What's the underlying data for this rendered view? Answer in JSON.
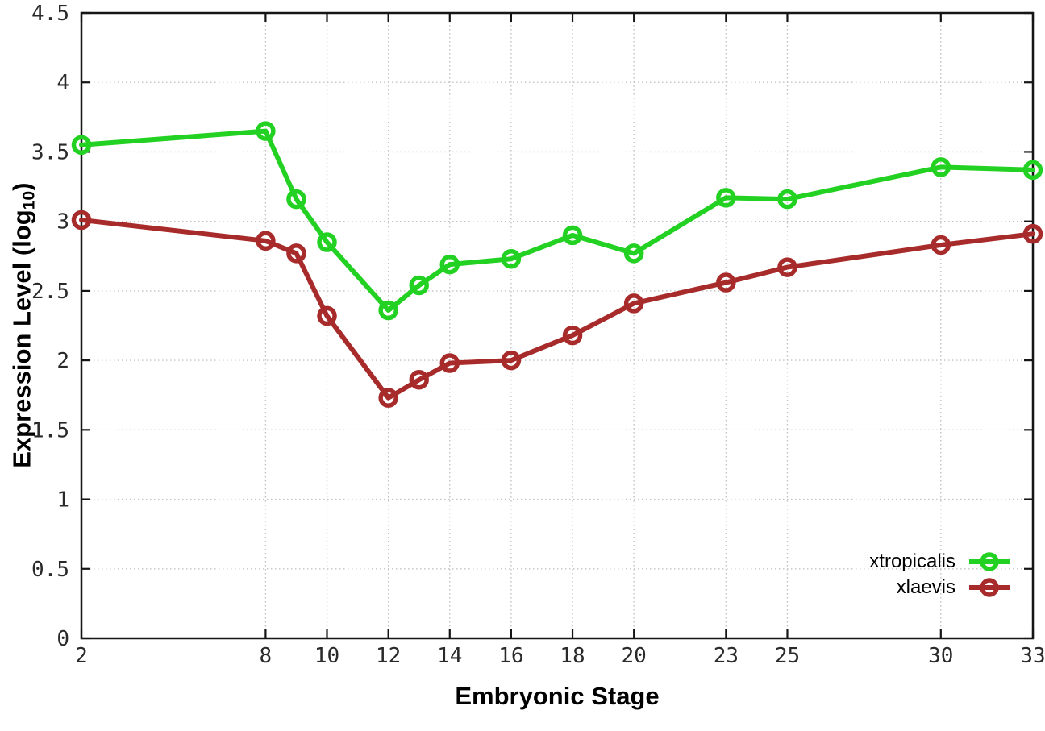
{
  "figure": {
    "background": "#ffffff",
    "xlabel": "Embryonic Stage",
    "ylabel_prefix": "Expression Level (log",
    "ylabel_sub": "10",
    "ylabel_suffix": ")"
  },
  "legend": {
    "position": "bottom-right",
    "entries": [
      {
        "label": "xtropicalis",
        "color": "#22d122"
      },
      {
        "label": "xlaevis",
        "color": "#a82b2b"
      }
    ]
  },
  "chart_data": {
    "type": "line",
    "title": "",
    "xlabel": "Embryonic Stage",
    "ylabel": "Expression Level (log10)",
    "marker": "open-circle",
    "grid": true,
    "legend_position": "bottom-right",
    "xlim": [
      2,
      33
    ],
    "ylim": [
      0,
      4.5
    ],
    "x": [
      2,
      8,
      9,
      10,
      12,
      13,
      14,
      16,
      18,
      20,
      23,
      25,
      30,
      33
    ],
    "series": [
      {
        "name": "xtropicalis",
        "color": "#22d122",
        "values": [
          3.55,
          3.65,
          3.16,
          2.85,
          2.36,
          2.54,
          2.69,
          2.73,
          2.9,
          2.77,
          3.17,
          3.16,
          3.39,
          3.37
        ]
      },
      {
        "name": "xlaevis",
        "color": "#a82b2b",
        "values": [
          3.01,
          2.86,
          2.77,
          2.32,
          1.73,
          1.86,
          1.98,
          2.0,
          2.18,
          2.41,
          2.56,
          2.67,
          2.83,
          2.91
        ]
      }
    ],
    "xticks": {
      "values": [
        2,
        8,
        10,
        12,
        14,
        16,
        18,
        20,
        23,
        25,
        30,
        33
      ],
      "labels": [
        "2",
        "8",
        "10",
        "12",
        "14",
        "16",
        "18",
        "20",
        "23",
        "25",
        "30",
        "33"
      ]
    },
    "yticks": {
      "values": [
        0,
        0.5,
        1,
        1.5,
        2,
        2.5,
        3,
        3.5,
        4,
        4.5
      ],
      "labels": [
        "0",
        "0.5",
        "1",
        "1.5",
        "2",
        "2.5",
        "3",
        "3.5",
        "4",
        "4.5"
      ]
    }
  }
}
